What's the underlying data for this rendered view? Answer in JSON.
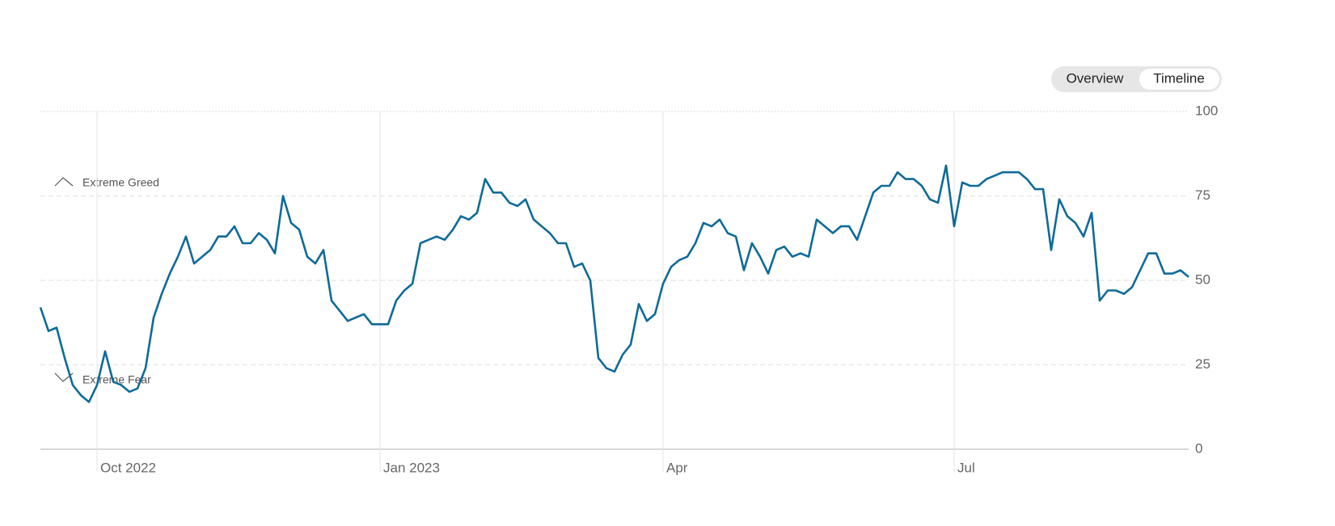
{
  "controls": [
    "Overview",
    "Timeline"
  ],
  "chart_data": {
    "type": "line",
    "annotations": [
      "Extreme Greed",
      "Extreme Fear"
    ],
    "categories": [
      null,
      null,
      null,
      null,
      null,
      null,
      null,
      "Oct 2022",
      null,
      null,
      null,
      null,
      null,
      null,
      null,
      null,
      null,
      null,
      null,
      null,
      null,
      null,
      null,
      null,
      null,
      null,
      null,
      null,
      null,
      null,
      null,
      null,
      null,
      null,
      null,
      null,
      null,
      null,
      null,
      null,
      null,
      null,
      "Jan 2023",
      null,
      null,
      null,
      null,
      null,
      null,
      null,
      null,
      null,
      null,
      null,
      null,
      null,
      null,
      null,
      null,
      null,
      null,
      null,
      null,
      null,
      null,
      null,
      null,
      null,
      null,
      null,
      null,
      null,
      null,
      null,
      null,
      null,
      null,
      "Apr",
      null,
      null,
      null,
      null,
      null,
      null,
      null,
      null,
      null,
      null,
      null,
      null,
      null,
      null,
      null,
      null,
      null,
      null,
      null,
      null,
      null,
      null,
      null,
      null,
      null,
      null,
      null,
      null,
      null,
      null,
      null,
      null,
      null,
      null,
      null,
      "Jul",
      null,
      null,
      null,
      null,
      null,
      null,
      null,
      null,
      null,
      null,
      null,
      null,
      null,
      null,
      null,
      null,
      null,
      null,
      null,
      null,
      null,
      null,
      null,
      null,
      null,
      null,
      null,
      null,
      null
    ],
    "values": [
      42,
      35,
      36,
      27,
      19,
      16,
      14,
      19,
      29,
      20,
      19,
      17,
      18,
      24,
      39,
      46,
      52,
      57,
      63,
      55,
      57,
      59,
      63,
      63,
      66,
      61,
      61,
      64,
      62,
      58,
      75,
      67,
      65,
      57,
      55,
      59,
      44,
      41,
      38,
      39,
      40,
      37,
      37,
      37,
      44,
      47,
      49,
      61,
      62,
      63,
      62,
      65,
      69,
      68,
      70,
      80,
      76,
      76,
      73,
      72,
      74,
      68,
      66,
      64,
      61,
      61,
      54,
      55,
      50,
      27,
      24,
      23,
      28,
      31,
      43,
      38,
      40,
      49,
      54,
      56,
      57,
      61,
      67,
      66,
      68,
      64,
      63,
      53,
      61,
      57,
      52,
      59,
      60,
      57,
      58,
      57,
      68,
      66,
      64,
      66,
      66,
      62,
      69,
      76,
      78,
      78,
      82,
      80,
      80,
      78,
      74,
      73,
      84,
      66,
      79,
      78,
      78,
      80,
      81,
      82,
      82,
      82,
      80,
      77,
      77,
      59,
      74,
      69,
      67,
      63,
      70,
      44,
      47,
      47,
      46,
      48,
      53,
      58,
      58,
      52,
      52,
      53,
      51
    ],
    "color": "#0f6a99",
    "ylim": [
      0,
      100
    ],
    "yticks": [
      0,
      25,
      50,
      75,
      100
    ],
    "grid": true
  }
}
